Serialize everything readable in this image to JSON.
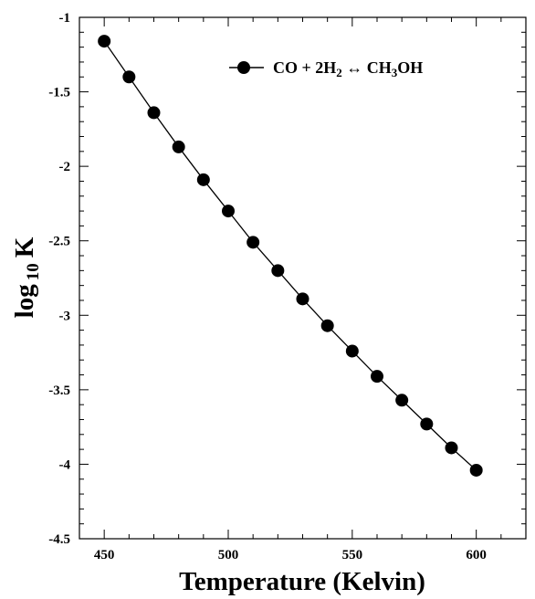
{
  "chart_data": {
    "type": "line",
    "xlabel": "Temperature (Kelvin)",
    "ylabel": {
      "main": "log",
      "sub": "10",
      "suffix": "K"
    },
    "xlim": [
      440,
      620
    ],
    "ylim": [
      -4.5,
      -1
    ],
    "x_ticks": [
      450,
      500,
      550,
      600
    ],
    "y_ticks": [
      -1,
      -1.5,
      -2,
      -2.5,
      -3,
      -3.5,
      -4,
      -4.5
    ],
    "grid": false,
    "legend_position": "top-right",
    "series": [
      {
        "name": {
          "parts": [
            {
              "t": "CO + 2H",
              "sub": false
            },
            {
              "t": "2",
              "sub": true
            },
            {
              "t": " ↔ CH",
              "sub": false
            },
            {
              "t": "3",
              "sub": true
            },
            {
              "t": "OH",
              "sub": false
            }
          ]
        },
        "color": "#000000",
        "marker": "circle",
        "x": [
          450,
          460,
          470,
          480,
          490,
          500,
          510,
          520,
          530,
          540,
          550,
          560,
          570,
          580,
          590,
          600
        ],
        "y": [
          -1.16,
          -1.4,
          -1.64,
          -1.87,
          -2.09,
          -2.3,
          -2.51,
          -2.7,
          -2.89,
          -3.07,
          -3.24,
          -3.41,
          -3.57,
          -3.73,
          -3.89,
          -4.04
        ]
      }
    ]
  }
}
